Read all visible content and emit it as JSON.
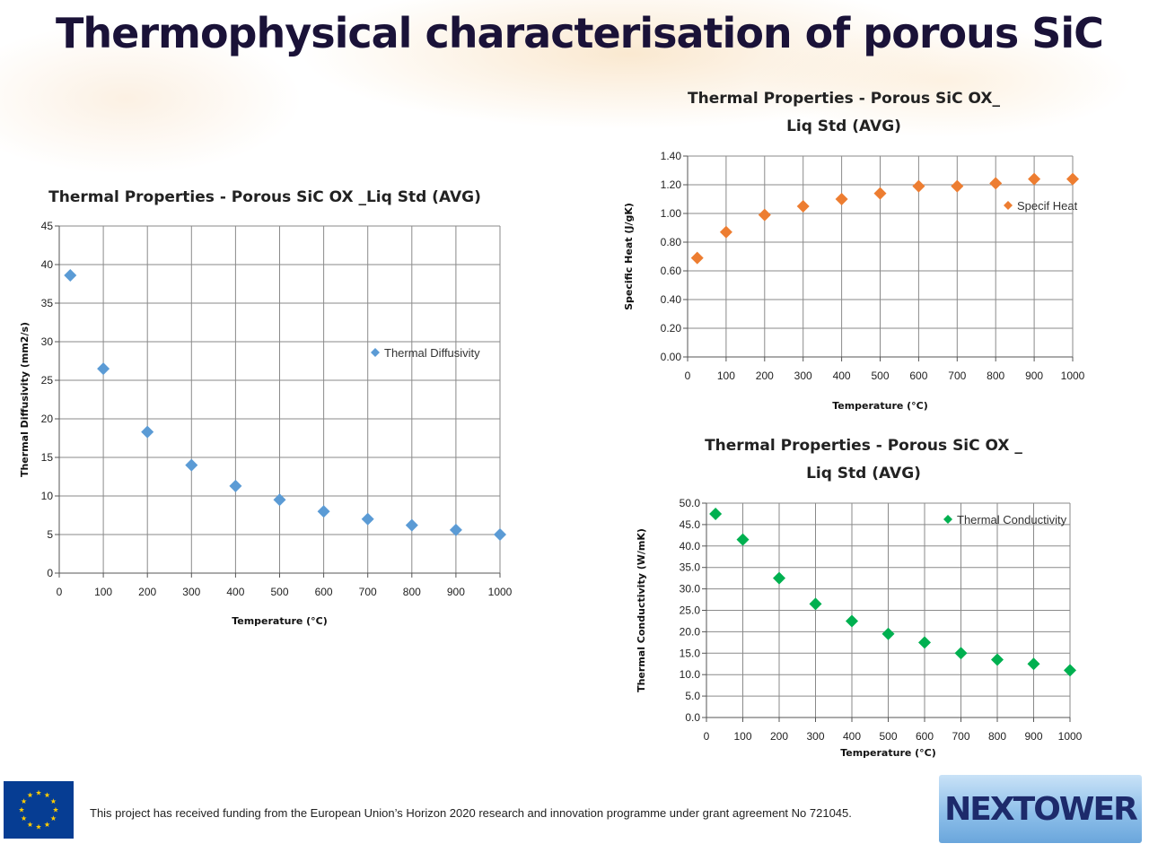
{
  "slide": {
    "title": "Thermophysical characterisation of porous SiC",
    "footer": "This project has received funding from the European Union’s Horizon 2020 research and innovation programme under grant agreement No 721045.",
    "logo_text": "NEXTOWER",
    "colors": {
      "title": "#1a1238",
      "eu_blue": "#063d93",
      "eu_star": "#ffcc00"
    },
    "icons": [
      "eu-flag-icon",
      "nextower-logo"
    ]
  },
  "chart_data": [
    {
      "id": "diffusivity",
      "type": "scatter",
      "title_lines": [
        "Thermal Properties - Porous SiC OX _Liq Std (AVG)"
      ],
      "xlabel": "Temperature (°C)",
      "ylabel": "Thermal Diffusivity (mm2/s)",
      "xlim": [
        0,
        1000
      ],
      "ylim": [
        0,
        45
      ],
      "xticks": [
        0,
        100,
        200,
        300,
        400,
        500,
        600,
        700,
        800,
        900,
        1000
      ],
      "yticks": [
        0,
        5,
        10,
        15,
        20,
        25,
        30,
        35,
        40,
        45
      ],
      "ytick_labels": [
        "0",
        "5",
        "10",
        "15",
        "20",
        "25",
        "30",
        "35",
        "40",
        "45"
      ],
      "grid": true,
      "legend_position": "right",
      "color": "#5b9bd5",
      "series": [
        {
          "name": "Thermal Diffusivity",
          "x": [
            25,
            100,
            200,
            300,
            400,
            500,
            600,
            700,
            800,
            900,
            1000
          ],
          "y": [
            38.6,
            26.5,
            18.3,
            14.0,
            11.3,
            9.5,
            8.0,
            7.0,
            6.2,
            5.6,
            5.0
          ]
        }
      ]
    },
    {
      "id": "specific-heat",
      "type": "scatter",
      "title_lines": [
        "Thermal Properties - Porous SiC OX_",
        "Liq Std (AVG)"
      ],
      "xlabel": "Temperature (°C)",
      "ylabel": "Specific Heat (J/gK)",
      "xlim": [
        0,
        1000
      ],
      "ylim": [
        0,
        1.4
      ],
      "xticks": [
        0,
        100,
        200,
        300,
        400,
        500,
        600,
        700,
        800,
        900,
        1000
      ],
      "yticks": [
        0,
        0.2,
        0.4,
        0.6,
        0.8,
        1.0,
        1.2,
        1.4
      ],
      "ytick_labels": [
        "0.00",
        "0.20",
        "0.40",
        "0.60",
        "0.80",
        "1.00",
        "1.20",
        "1.40"
      ],
      "grid": true,
      "legend_position": "top-right",
      "color": "#ed7d31",
      "series": [
        {
          "name": "Specif Heat",
          "x": [
            25,
            100,
            200,
            300,
            400,
            500,
            600,
            700,
            800,
            900,
            1000
          ],
          "y": [
            0.69,
            0.87,
            0.99,
            1.05,
            1.1,
            1.14,
            1.19,
            1.19,
            1.21,
            1.24,
            1.24
          ]
        }
      ]
    },
    {
      "id": "conductivity",
      "type": "scatter",
      "title_lines": [
        "Thermal Properties - Porous SiC OX _",
        "Liq Std (AVG)"
      ],
      "xlabel": "Temperature (°C)",
      "ylabel": "Thermal Conductivity (W/mK)",
      "xlim": [
        0,
        1000
      ],
      "ylim": [
        0,
        50
      ],
      "xticks": [
        0,
        100,
        200,
        300,
        400,
        500,
        600,
        700,
        800,
        900,
        1000
      ],
      "yticks": [
        0,
        5,
        10,
        15,
        20,
        25,
        30,
        35,
        40,
        45,
        50
      ],
      "ytick_labels": [
        "0.0",
        "5.0",
        "10.0",
        "15.0",
        "20.0",
        "25.0",
        "30.0",
        "35.0",
        "40.0",
        "45.0",
        "50.0"
      ],
      "grid": true,
      "legend_position": "top-right",
      "color": "#00b050",
      "series": [
        {
          "name": "Thermal Conductivity",
          "x": [
            25,
            100,
            200,
            300,
            400,
            500,
            600,
            700,
            800,
            900,
            1000
          ],
          "y": [
            47.5,
            41.5,
            32.5,
            26.5,
            22.5,
            19.5,
            17.5,
            15.0,
            13.5,
            12.5,
            11.0
          ]
        }
      ]
    }
  ]
}
